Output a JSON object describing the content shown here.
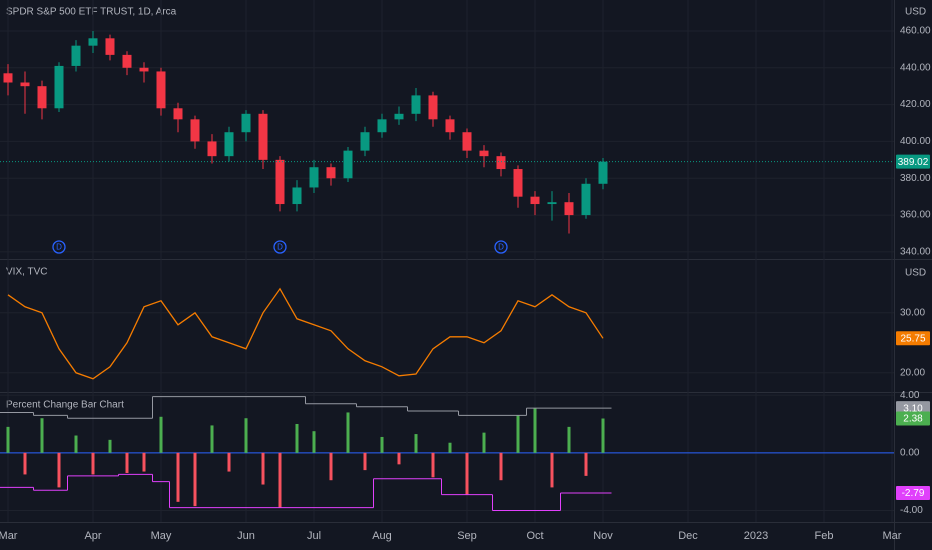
{
  "chart_data": {
    "type": "multi-pane",
    "categories": [
      "Mar",
      null,
      null,
      null,
      null,
      "Apr",
      null,
      null,
      null,
      "May",
      null,
      null,
      null,
      null,
      "Jun",
      null,
      null,
      null,
      "Jul",
      null,
      null,
      null,
      "Aug",
      null,
      null,
      null,
      null,
      "Sep",
      null,
      null,
      null,
      "Oct",
      null,
      null,
      null,
      "Nov",
      null,
      null,
      null,
      null,
      "Dec",
      null,
      null,
      null,
      "2023",
      null,
      null,
      null,
      "Feb",
      null,
      null,
      null,
      "Mar"
    ],
    "panes": [
      {
        "type": "candlestick",
        "title": "SPDR S&P 500 ETF TRUST, 1D, Arca",
        "currency": "USD",
        "up_color": "#089981",
        "down_color": "#f23645",
        "open": [
          437,
          432,
          430,
          418,
          441,
          452,
          456,
          447,
          440,
          438,
          418,
          412,
          400,
          392,
          405,
          415,
          390,
          366,
          375,
          386,
          380,
          395,
          405,
          412,
          415,
          425,
          412,
          405,
          395,
          392,
          385,
          370,
          366,
          367,
          360,
          377,
          null,
          null,
          null,
          null,
          null,
          null,
          null,
          null,
          null,
          null,
          null,
          null,
          null,
          null,
          null,
          null,
          null
        ],
        "high": [
          442,
          438,
          433,
          443,
          455,
          460,
          458,
          449,
          443,
          440,
          421,
          414,
          404,
          408,
          417,
          417,
          392,
          379,
          390,
          388,
          397,
          408,
          415,
          419,
          429,
          427,
          414,
          407,
          398,
          394,
          387,
          373,
          373,
          372,
          380,
          391,
          null,
          null,
          null,
          null,
          null,
          null,
          null,
          null,
          null,
          null,
          null,
          null,
          null,
          null,
          null,
          null,
          null
        ],
        "low": [
          425,
          415,
          412,
          416,
          438,
          448,
          444,
          436,
          432,
          414,
          405,
          396,
          388,
          389,
          400,
          385,
          362,
          362,
          372,
          376,
          378,
          392,
          402,
          409,
          411,
          408,
          401,
          391,
          386,
          381,
          364,
          360,
          357,
          350,
          358,
          374,
          null,
          null,
          null,
          null,
          null,
          null,
          null,
          null,
          null,
          null,
          null,
          null,
          null,
          null,
          null,
          null,
          null
        ],
        "close": [
          432,
          430,
          418,
          441,
          452,
          456,
          447,
          440,
          438,
          418,
          412,
          400,
          392,
          405,
          415,
          390,
          366,
          375,
          386,
          380,
          395,
          405,
          412,
          415,
          425,
          412,
          405,
          395,
          392,
          385,
          370,
          366,
          367,
          360,
          377,
          389.02,
          null,
          null,
          null,
          null,
          null,
          null,
          null,
          null,
          null,
          null,
          null,
          null,
          null,
          null,
          null,
          null,
          null
        ],
        "dividend_markers": {
          "label": "D",
          "categories": [
            3,
            16,
            29
          ]
        },
        "ylim": [
          336.7,
          476.8
        ],
        "yticks": [
          {
            "value": 340,
            "label": "340.00"
          },
          {
            "value": 360,
            "label": "360.00"
          },
          {
            "value": 380,
            "label": "380.00"
          },
          {
            "value": 400,
            "label": "400.00"
          },
          {
            "value": 420,
            "label": "420.00"
          },
          {
            "value": 440,
            "label": "440.00"
          },
          {
            "value": 460,
            "label": "460.00"
          }
        ],
        "grid": true
      },
      {
        "type": "line",
        "title": "VIX, TVC",
        "currency": "USD",
        "color": "#f57c00",
        "values": [
          33,
          31,
          30,
          24,
          20,
          19,
          21,
          25,
          31,
          32,
          28,
          30,
          26,
          25,
          24,
          30,
          34,
          29,
          28,
          27,
          24,
          22,
          21,
          19.5,
          19.8,
          24,
          26,
          26,
          25,
          27,
          32,
          31,
          33,
          31,
          30,
          25.75,
          null,
          null,
          null,
          null,
          null,
          null,
          null,
          null,
          null,
          null,
          null,
          null,
          null,
          null,
          null,
          null,
          null
        ],
        "ylim": [
          16.8,
          38.8
        ],
        "yticks": [
          {
            "value": 20,
            "label": "20.00"
          },
          {
            "value": 30,
            "label": "30.00"
          }
        ],
        "grid": true
      },
      {
        "type": "bar",
        "title": "Percent Change Bar Chart",
        "up_color": "#4caf50",
        "down_color": "#f7525f",
        "zero_color": "#2962ff",
        "values": [
          1.8,
          -1.5,
          2.4,
          -2.4,
          1.2,
          -1.5,
          0.9,
          -1.4,
          -1.3,
          2.5,
          -3.4,
          -3.7,
          1.9,
          -1.3,
          2.4,
          -2.2,
          -3.8,
          2.0,
          1.5,
          -1.9,
          2.8,
          -1.2,
          1.1,
          -0.8,
          1.3,
          -1.7,
          0.7,
          -2.9,
          1.4,
          -1.9,
          2.6,
          3.1,
          -2.4,
          1.8,
          -1.6,
          2.38,
          null,
          null,
          null,
          null,
          null,
          null,
          null,
          null,
          null,
          null,
          null,
          null,
          null,
          null,
          null,
          null,
          null
        ],
        "series": [
          {
            "color": "#9598a1",
            "last_label": "3.10",
            "values": [
              2.8,
              2.8,
              2.6,
              2.6,
              2.4,
              2.4,
              2.4,
              2.4,
              2.4,
              3.9,
              3.9,
              3.9,
              3.9,
              3.9,
              3.9,
              3.9,
              3.9,
              3.9,
              3.4,
              3.4,
              3.4,
              3.2,
              3.2,
              3.2,
              2.9,
              2.9,
              2.9,
              2.6,
              2.6,
              2.6,
              2.6,
              3.1,
              3.1,
              3.1,
              3.1,
              3.1,
              null,
              null,
              null,
              null,
              null,
              null,
              null,
              null,
              null,
              null,
              null,
              null,
              null,
              null,
              null,
              null,
              null
            ]
          },
          {
            "color": "#e040fb",
            "values": [
              -2.4,
              -2.4,
              -2.6,
              -2.6,
              -1.6,
              -1.6,
              -1.6,
              -1.5,
              -1.5,
              -2.0,
              -3.8,
              -3.8,
              -3.8,
              -3.8,
              -3.8,
              -3.8,
              -3.8,
              -3.8,
              -3.8,
              -3.8,
              -3.8,
              -3.8,
              -1.8,
              -1.8,
              -1.8,
              -1.8,
              -2.9,
              -2.9,
              -2.9,
              -4.0,
              -4.0,
              -4.0,
              -4.0,
              -2.79,
              -2.79,
              -2.79,
              null,
              null,
              null,
              null,
              null,
              null,
              null,
              null,
              null,
              null,
              null,
              null,
              null,
              null,
              null,
              null,
              null
            ]
          }
        ],
        "ylim": [
          -4.8,
          4.15
        ],
        "yticks": [
          {
            "value": 4,
            "label": "4.00"
          },
          {
            "value": 0,
            "label": "0.00"
          },
          {
            "value": -4,
            "label": "-4.00"
          }
        ],
        "grid": true
      }
    ]
  }
}
